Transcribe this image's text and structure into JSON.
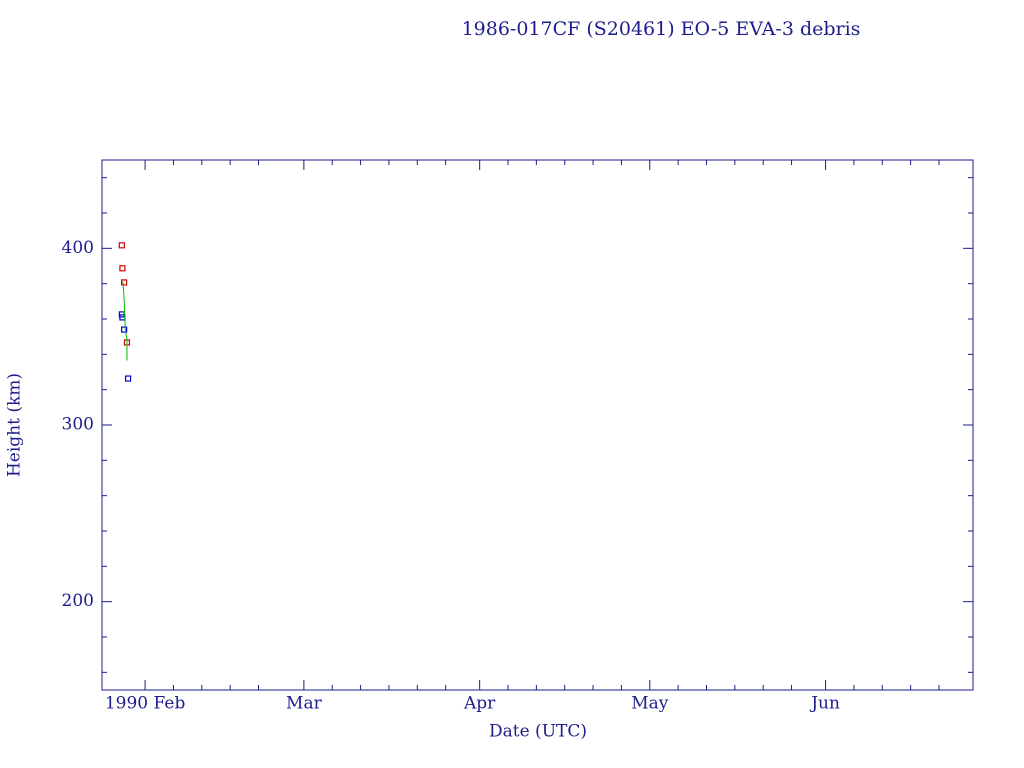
{
  "chart_data": {
    "type": "scatter",
    "title": "1986-017CF (S20461) EO-5 EVA-3 debris",
    "x_label": "Date (UTC)",
    "y_label": "Height (km)",
    "xlim": [
      24.4,
      178
    ],
    "ylim": [
      150,
      450
    ],
    "xticks": [
      {
        "value": 32,
        "label": "1990 Feb"
      },
      {
        "value": 60,
        "label": "Mar"
      },
      {
        "value": 91,
        "label": "Apr"
      },
      {
        "value": 121,
        "label": "May"
      },
      {
        "value": 152,
        "label": "Jun"
      }
    ],
    "xminorticks": [
      37,
      42,
      47,
      52,
      65,
      70,
      75,
      80,
      85,
      96,
      101,
      106,
      111,
      116,
      126,
      131,
      136,
      141,
      146,
      157,
      162,
      167,
      172
    ],
    "yticks": [
      200,
      300,
      400
    ],
    "yminorticks": [
      160,
      180,
      220,
      240,
      260,
      280,
      320,
      340,
      360,
      380,
      420,
      440
    ],
    "series": [
      {
        "mode": "markers",
        "color": "#d00000",
        "x": [
          27.9,
          28.0,
          28.3,
          28.8
        ],
        "values": [
          401.7,
          388.7,
          380.7,
          346.7
        ]
      },
      {
        "mode": "markers",
        "color": "#0000d0",
        "x": [
          27.9,
          28.0,
          28.3,
          29.0
        ],
        "values": [
          362.6,
          360.9,
          354.0,
          326.3
        ]
      },
      {
        "mode": "line",
        "color": "#00c000",
        "x": [
          28.1,
          28.3,
          28.5,
          28.8,
          28.8
        ],
        "values": [
          381.3,
          371.1,
          354.0,
          348.4,
          336.5
        ]
      }
    ]
  }
}
